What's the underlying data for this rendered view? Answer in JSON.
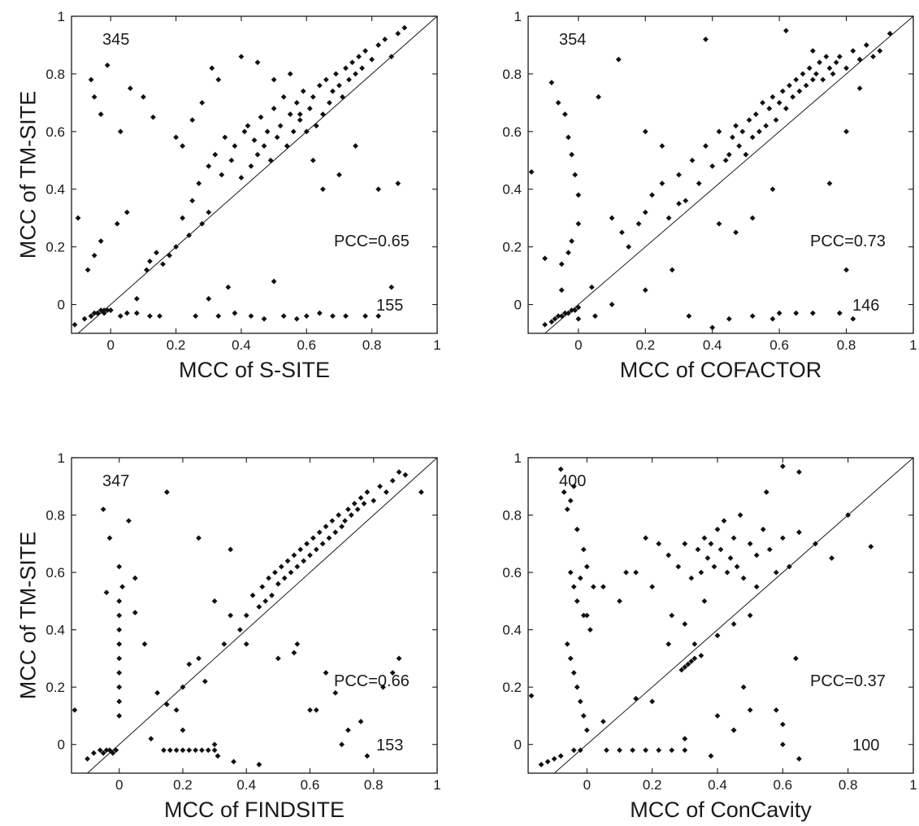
{
  "chart_data": [
    {
      "type": "scatter",
      "xlabel": "MCC of S-SITE",
      "ylabel": "MCC of TM-SITE",
      "xlim": [
        -0.12,
        1
      ],
      "ylim": [
        -0.1,
        1
      ],
      "xticks": [
        "0",
        "0.2",
        "0.4",
        "0.6",
        "0.8",
        "1"
      ],
      "yticks": [
        "0",
        "0.2",
        "0.4",
        "0.6",
        "0.8",
        "1"
      ],
      "diagonal": true,
      "annotations": {
        "count_above": "345",
        "count_below": "155",
        "pcc": "PCC=0.65"
      },
      "points_estimated": {
        "x": [
          -0.11,
          -0.08,
          -0.06,
          -0.05,
          -0.04,
          -0.03,
          -0.02,
          -0.01,
          0.0,
          -0.1,
          -0.07,
          -0.05,
          -0.03,
          0.02,
          0.05,
          0.08,
          0.11,
          0.12,
          0.14,
          0.16,
          0.18,
          0.2,
          0.22,
          0.24,
          0.25,
          0.27,
          0.28,
          0.3,
          0.3,
          0.32,
          0.34,
          0.35,
          0.37,
          0.38,
          0.4,
          0.41,
          0.42,
          0.43,
          0.44,
          0.45,
          0.46,
          0.47,
          0.48,
          0.49,
          0.5,
          0.51,
          0.52,
          0.53,
          0.54,
          0.55,
          0.56,
          0.57,
          0.58,
          0.59,
          0.6,
          0.61,
          0.62,
          0.63,
          0.64,
          0.65,
          0.66,
          0.67,
          0.68,
          0.69,
          0.7,
          0.71,
          0.72,
          0.73,
          0.74,
          0.75,
          0.76,
          0.77,
          0.78,
          0.8,
          0.82,
          0.84,
          0.86,
          0.88,
          0.9,
          -0.06,
          -0.05,
          -0.03,
          -0.01,
          0.03,
          0.06,
          0.1,
          0.13,
          0.2,
          0.22,
          0.25,
          0.28,
          0.31,
          0.33,
          0.4,
          0.45,
          0.5,
          0.55,
          0.58,
          0.62,
          0.65,
          0.7,
          0.75,
          0.82,
          0.88,
          -0.06,
          -0.04,
          -0.02,
          0.0,
          0.03,
          0.05,
          0.08,
          0.12,
          0.15,
          0.26,
          0.3,
          0.33,
          0.36,
          0.38,
          0.43,
          0.47,
          0.5,
          0.53,
          0.57,
          0.6,
          0.64,
          0.68,
          0.72,
          0.78,
          0.82,
          0.86
        ],
        "y": [
          -0.07,
          -0.05,
          -0.04,
          -0.03,
          -0.03,
          -0.02,
          -0.02,
          -0.02,
          -0.02,
          0.3,
          0.12,
          0.17,
          0.22,
          0.28,
          0.32,
          0.02,
          0.12,
          0.15,
          0.18,
          0.14,
          0.17,
          0.2,
          0.3,
          0.24,
          0.36,
          0.42,
          0.28,
          0.32,
          0.48,
          0.52,
          0.45,
          0.58,
          0.5,
          0.55,
          0.44,
          0.6,
          0.62,
          0.48,
          0.57,
          0.52,
          0.65,
          0.55,
          0.6,
          0.5,
          0.68,
          0.58,
          0.62,
          0.72,
          0.55,
          0.66,
          0.6,
          0.7,
          0.64,
          0.74,
          0.6,
          0.68,
          0.72,
          0.62,
          0.76,
          0.66,
          0.78,
          0.7,
          0.74,
          0.8,
          0.76,
          0.72,
          0.82,
          0.78,
          0.84,
          0.8,
          0.86,
          0.82,
          0.88,
          0.85,
          0.9,
          0.92,
          0.86,
          0.94,
          0.96,
          0.78,
          0.72,
          0.66,
          0.83,
          0.6,
          0.75,
          0.72,
          0.65,
          0.58,
          0.55,
          0.64,
          0.7,
          0.82,
          0.78,
          0.86,
          0.84,
          0.78,
          0.8,
          0.66,
          0.5,
          0.4,
          0.45,
          0.55,
          0.4,
          0.42,
          -0.04,
          -0.03,
          -0.03,
          -0.02,
          -0.04,
          -0.03,
          -0.03,
          -0.04,
          -0.04,
          -0.04,
          0.02,
          -0.04,
          0.06,
          -0.03,
          -0.04,
          -0.05,
          0.08,
          -0.04,
          -0.05,
          -0.04,
          -0.03,
          -0.04,
          -0.04,
          -0.04,
          -0.04,
          0.06
        ]
      }
    },
    {
      "type": "scatter",
      "xlabel": "MCC of COFACTOR",
      "ylabel": "",
      "xlim": [
        -0.15,
        1
      ],
      "ylim": [
        -0.1,
        1
      ],
      "xticks": [
        "0",
        "0.2",
        "0.4",
        "0.6",
        "0.8",
        "1"
      ],
      "yticks": [
        "0",
        "0.2",
        "0.4",
        "0.6",
        "0.8",
        "1"
      ],
      "diagonal": true,
      "annotations": {
        "count_above": "354",
        "count_below": "146",
        "pcc": "PCC=0.73"
      },
      "points_estimated": {
        "x": [
          -0.14,
          -0.1,
          -0.08,
          -0.07,
          -0.06,
          -0.05,
          -0.04,
          -0.03,
          -0.02,
          -0.01,
          0.0,
          -0.08,
          -0.06,
          -0.04,
          -0.03,
          -0.02,
          -0.01,
          0.0,
          0.0,
          -0.02,
          -0.03,
          -0.05,
          0.06,
          0.1,
          0.13,
          0.15,
          0.18,
          0.2,
          0.22,
          0.25,
          0.27,
          0.3,
          0.32,
          0.34,
          0.36,
          0.38,
          0.4,
          0.42,
          0.44,
          0.45,
          0.46,
          0.47,
          0.48,
          0.49,
          0.5,
          0.51,
          0.52,
          0.53,
          0.54,
          0.55,
          0.56,
          0.57,
          0.58,
          0.59,
          0.6,
          0.61,
          0.62,
          0.63,
          0.64,
          0.65,
          0.66,
          0.67,
          0.68,
          0.69,
          0.7,
          0.71,
          0.72,
          0.73,
          0.74,
          0.75,
          0.76,
          0.77,
          0.78,
          0.8,
          0.82,
          0.84,
          0.86,
          0.88,
          0.9,
          0.93,
          0.04,
          0.12,
          0.2,
          0.25,
          0.3,
          0.38,
          0.42,
          0.47,
          0.52,
          0.58,
          0.62,
          0.7,
          0.75,
          0.8,
          0.84,
          -0.1,
          -0.05,
          0.0,
          0.05,
          0.1,
          0.2,
          0.28,
          0.33,
          0.4,
          0.45,
          0.52,
          0.58,
          0.6,
          0.65,
          0.7,
          0.78,
          0.8,
          0.82
        ],
        "y": [
          0.46,
          -0.07,
          -0.06,
          -0.05,
          -0.04,
          -0.04,
          -0.03,
          -0.03,
          -0.02,
          -0.02,
          -0.01,
          0.77,
          0.7,
          0.66,
          0.58,
          0.52,
          0.45,
          0.38,
          0.28,
          0.22,
          0.18,
          0.14,
          0.72,
          0.3,
          0.25,
          0.2,
          0.28,
          0.32,
          0.38,
          0.42,
          0.3,
          0.45,
          0.36,
          0.5,
          0.42,
          0.55,
          0.48,
          0.6,
          0.5,
          0.52,
          0.58,
          0.62,
          0.55,
          0.6,
          0.52,
          0.64,
          0.58,
          0.66,
          0.6,
          0.7,
          0.62,
          0.68,
          0.72,
          0.64,
          0.7,
          0.74,
          0.68,
          0.76,
          0.72,
          0.78,
          0.74,
          0.8,
          0.76,
          0.82,
          0.78,
          0.8,
          0.84,
          0.78,
          0.86,
          0.82,
          0.8,
          0.84,
          0.86,
          0.82,
          0.88,
          0.85,
          0.9,
          0.86,
          0.88,
          0.94,
          0.06,
          0.85,
          0.6,
          0.55,
          0.35,
          0.92,
          0.28,
          0.25,
          0.3,
          0.4,
          0.95,
          0.88,
          0.42,
          0.6,
          0.75,
          0.16,
          0.05,
          -0.05,
          -0.04,
          0.0,
          0.05,
          0.12,
          -0.04,
          -0.08,
          -0.05,
          -0.04,
          -0.05,
          -0.03,
          -0.03,
          -0.03,
          -0.03,
          0.12,
          -0.05
        ]
      }
    },
    {
      "type": "scatter",
      "xlabel": "MCC of FINDSITE",
      "ylabel": "MCC of TM-SITE",
      "xlim": [
        -0.15,
        1
      ],
      "ylim": [
        -0.1,
        1
      ],
      "xticks": [
        "0",
        "0.2",
        "0.4",
        "0.6",
        "0.8",
        "1"
      ],
      "yticks": [
        "0",
        "0.2",
        "0.4",
        "0.6",
        "0.8",
        "1"
      ],
      "diagonal": true,
      "annotations": {
        "count_above": "347",
        "count_below": "153",
        "pcc": "PCC=0.66"
      },
      "points_estimated": {
        "x": [
          -0.14,
          -0.1,
          -0.08,
          -0.06,
          -0.05,
          -0.04,
          -0.03,
          -0.02,
          -0.01,
          0.0,
          0.01,
          0.0,
          0.0,
          0.0,
          0.0,
          0.0,
          0.0,
          0.0,
          0.0,
          0.0,
          -0.05,
          -0.03,
          0.03,
          0.05,
          0.08,
          0.12,
          0.15,
          0.18,
          0.2,
          0.22,
          0.25,
          0.27,
          0.3,
          0.33,
          0.35,
          0.38,
          0.4,
          0.42,
          0.44,
          0.45,
          0.46,
          0.47,
          0.48,
          0.49,
          0.5,
          0.51,
          0.52,
          0.53,
          0.54,
          0.55,
          0.56,
          0.57,
          0.58,
          0.59,
          0.6,
          0.61,
          0.62,
          0.63,
          0.64,
          0.65,
          0.66,
          0.67,
          0.68,
          0.69,
          0.7,
          0.71,
          0.72,
          0.73,
          0.74,
          0.75,
          0.76,
          0.77,
          0.78,
          0.8,
          0.82,
          0.84,
          0.86,
          0.88,
          0.9,
          0.95,
          0.14,
          0.16,
          0.18,
          0.2,
          0.22,
          0.24,
          0.26,
          0.28,
          0.3,
          0.31,
          0.15,
          0.25,
          0.35,
          0.4,
          0.55,
          0.62,
          0.65,
          0.68,
          0.72,
          0.78,
          0.83,
          0.86,
          0.88,
          -0.04,
          0.05,
          0.1,
          0.2,
          0.3,
          0.36,
          0.44,
          0.5,
          0.56,
          0.6,
          0.7,
          0.76
        ],
        "y": [
          0.12,
          -0.05,
          -0.03,
          -0.02,
          -0.03,
          -0.02,
          -0.02,
          -0.03,
          -0.02,
          0.62,
          0.55,
          0.5,
          0.45,
          0.4,
          0.35,
          0.3,
          0.25,
          0.2,
          0.15,
          0.1,
          0.82,
          0.72,
          0.78,
          0.46,
          0.35,
          0.18,
          0.14,
          0.12,
          0.2,
          0.28,
          0.3,
          0.22,
          0.5,
          0.35,
          0.45,
          0.4,
          0.45,
          0.52,
          0.48,
          0.55,
          0.5,
          0.58,
          0.52,
          0.6,
          0.56,
          0.62,
          0.58,
          0.64,
          0.6,
          0.66,
          0.62,
          0.68,
          0.64,
          0.7,
          0.66,
          0.72,
          0.68,
          0.74,
          0.7,
          0.76,
          0.72,
          0.78,
          0.74,
          0.8,
          0.76,
          0.78,
          0.82,
          0.8,
          0.84,
          0.82,
          0.86,
          0.84,
          0.88,
          0.85,
          0.9,
          0.88,
          0.92,
          0.95,
          0.94,
          0.88,
          -0.02,
          -0.02,
          -0.02,
          -0.02,
          -0.02,
          -0.02,
          -0.02,
          -0.02,
          -0.02,
          -0.04,
          0.88,
          0.72,
          0.68,
          0.35,
          0.32,
          0.12,
          0.25,
          0.18,
          0.05,
          -0.04,
          0.2,
          0.25,
          0.3,
          0.53,
          0.58,
          0.02,
          0.05,
          0.0,
          -0.06,
          -0.07,
          0.3,
          0.35,
          0.12,
          0.0,
          0.08
        ]
      }
    },
    {
      "type": "scatter",
      "xlabel": "MCC of ConCavity",
      "ylabel": "",
      "xlim": [
        -0.18,
        1
      ],
      "ylim": [
        -0.1,
        1
      ],
      "xticks": [
        "0",
        "0.2",
        "0.4",
        "0.6",
        "0.8",
        "1"
      ],
      "yticks": [
        "0",
        "0.2",
        "0.4",
        "0.6",
        "0.8",
        "1"
      ],
      "diagonal": true,
      "annotations": {
        "count_above": "400",
        "count_below": "100",
        "pcc": "PCC=0.37"
      },
      "points_estimated": {
        "x": [
          -0.17,
          -0.14,
          -0.12,
          -0.1,
          -0.08,
          -0.07,
          -0.06,
          -0.05,
          -0.04,
          -0.03,
          -0.02,
          -0.01,
          0.0,
          0.01,
          0.02,
          -0.06,
          -0.05,
          -0.04,
          -0.03,
          -0.02,
          -0.01,
          0.0,
          -0.05,
          -0.03,
          -0.01,
          0.0,
          -0.02,
          -0.04,
          0.06,
          0.1,
          0.14,
          0.18,
          0.22,
          0.26,
          0.3,
          0.05,
          0.1,
          0.15,
          0.2,
          0.25,
          0.28,
          0.3,
          0.32,
          0.34,
          0.35,
          0.36,
          0.37,
          0.38,
          0.39,
          0.4,
          0.41,
          0.42,
          0.43,
          0.44,
          0.45,
          0.46,
          0.47,
          0.48,
          0.5,
          0.52,
          0.54,
          0.56,
          0.58,
          0.6,
          0.62,
          0.65,
          0.7,
          0.75,
          0.8,
          0.87,
          0.12,
          0.18,
          0.22,
          0.26,
          0.3,
          0.33,
          0.36,
          0.4,
          0.45,
          0.5,
          0.55,
          0.6,
          0.65,
          0.29,
          0.3,
          0.31,
          0.32,
          0.33,
          0.35,
          0.2,
          0.25,
          0.4,
          0.45,
          0.48,
          0.52,
          0.58,
          0.6,
          0.64,
          -0.08,
          -0.04,
          0.05,
          0.15,
          0.3,
          0.38,
          0.45,
          0.5,
          0.6,
          0.65
        ],
        "y": [
          0.17,
          -0.07,
          -0.06,
          -0.05,
          -0.04,
          0.88,
          0.82,
          0.6,
          0.55,
          0.5,
          0.58,
          0.45,
          0.62,
          0.4,
          0.55,
          0.35,
          0.3,
          0.25,
          0.2,
          0.15,
          0.1,
          0.05,
          0.85,
          0.75,
          0.68,
          0.45,
          -0.02,
          -0.02,
          -0.02,
          -0.02,
          -0.02,
          -0.02,
          -0.02,
          -0.02,
          -0.02,
          0.55,
          0.5,
          0.6,
          0.55,
          0.66,
          0.62,
          0.7,
          0.58,
          0.68,
          0.6,
          0.72,
          0.65,
          0.7,
          0.62,
          0.75,
          0.68,
          0.78,
          0.6,
          0.65,
          0.72,
          0.62,
          0.8,
          0.58,
          0.7,
          0.66,
          0.75,
          0.68,
          0.6,
          0.72,
          0.62,
          0.74,
          0.7,
          0.65,
          0.8,
          0.69,
          0.6,
          0.72,
          0.7,
          0.45,
          0.42,
          0.35,
          0.5,
          0.38,
          0.42,
          0.45,
          0.88,
          0.97,
          0.95,
          0.26,
          0.27,
          0.28,
          0.29,
          0.3,
          0.31,
          0.15,
          0.35,
          0.1,
          0.05,
          0.2,
          0.55,
          0.12,
          0.0,
          0.3,
          0.96,
          0.9,
          0.08,
          0.16,
          0.02,
          -0.04,
          0.05,
          0.12,
          0.07,
          -0.05
        ]
      }
    }
  ]
}
